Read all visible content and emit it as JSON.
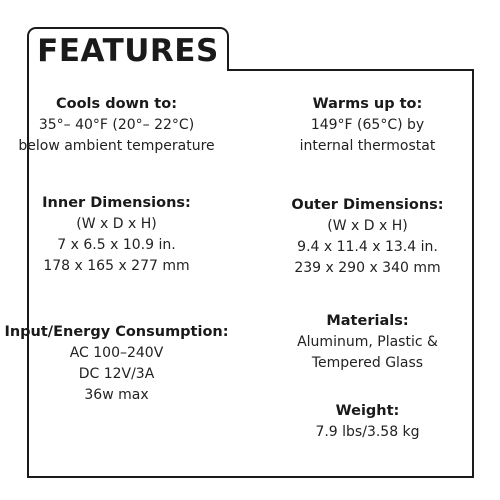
{
  "title": "FEATURES",
  "sections": {
    "cools": {
      "heading": "Cools down to:",
      "lines": [
        "35°– 40°F (20°– 22°C)",
        "below ambient temperature"
      ]
    },
    "warms": {
      "heading": "Warms up to:",
      "lines": [
        "149°F (65°C) by",
        "internal thermostat"
      ]
    },
    "inner": {
      "heading": "Inner Dimensions:",
      "lines": [
        "(W x D x H)",
        "7 x 6.5 x 10.9 in.",
        "178 x 165 x 277 mm"
      ]
    },
    "outer": {
      "heading": "Outer Dimensions:",
      "lines": [
        "(W x D x H)",
        "9.4 x 11.4 x 13.4 in.",
        "239 x 290 x 340 mm"
      ]
    },
    "input": {
      "heading": "Input/Energy Consumption:",
      "lines": [
        "AC 100–240V",
        "DC 12V/3A",
        "36w max"
      ]
    },
    "materials": {
      "heading": "Materials:",
      "lines": [
        "Aluminum, Plastic &",
        "Tempered Glass"
      ]
    },
    "weight": {
      "heading": "Weight:",
      "lines": [
        "7.9 lbs/3.58 kg"
      ]
    }
  }
}
